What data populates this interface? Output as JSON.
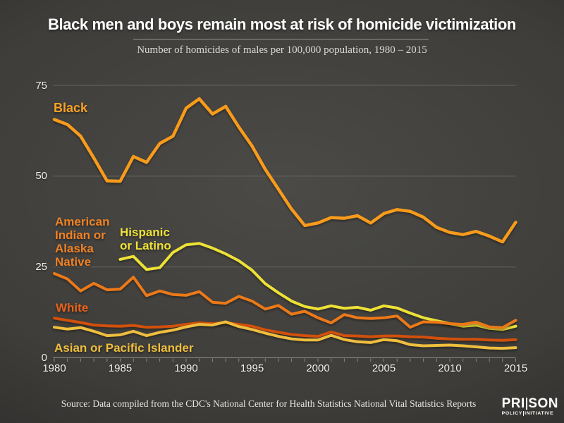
{
  "colors": {
    "background_center": "#4B4A47",
    "background_edge": "#262524",
    "gridline": "#66655F",
    "axis": "#8A8984",
    "title_text": "#FFFFFF",
    "subtitle_text": "#DBD9D6",
    "axis_text": "#F1EFEC",
    "footer_text": "#E9E7E4"
  },
  "footer": {
    "source": "Source: Data compiled from the CDC's National Center for Health Statistics National Vital Statistics Reports",
    "logo": {
      "word_left": "PRI",
      "word_right": "SON",
      "sub_left": "POLICY",
      "sub_right": "INITIATIVE"
    }
  },
  "chart_data": {
    "type": "line",
    "title": "Black men and boys remain most at risk of homicide victimization",
    "subtitle": "Number of homicides of males per 100,000 population, 1980 – 2015",
    "xlabel": "",
    "ylabel": "",
    "ylim": [
      0,
      75
    ],
    "y_ticks": [
      0,
      25,
      50,
      75
    ],
    "y_gridlines": [
      25,
      50,
      75
    ],
    "grid": true,
    "legend_position": "inline-labels",
    "x": [
      1980,
      1981,
      1982,
      1983,
      1984,
      1985,
      1986,
      1987,
      1988,
      1989,
      1990,
      1991,
      1992,
      1993,
      1994,
      1995,
      1996,
      1997,
      1998,
      1999,
      2000,
      2001,
      2002,
      2003,
      2004,
      2005,
      2006,
      2007,
      2008,
      2009,
      2010,
      2011,
      2012,
      2013,
      2014,
      2015
    ],
    "x_tick_labels": [
      1980,
      1985,
      1990,
      1995,
      2000,
      2005,
      2010,
      2015
    ],
    "draw_order": [
      0,
      2,
      1,
      3,
      4
    ],
    "series": [
      {
        "name": "Black",
        "label": "Black",
        "color": "#F89B1B",
        "label_color": "#F9A226",
        "values": [
          65.6,
          64.2,
          61.0,
          55.0,
          48.7,
          48.6,
          55.4,
          53.8,
          59.0,
          61.0,
          68.7,
          71.3,
          67.1,
          69.2,
          63.5,
          58.3,
          51.9,
          46.4,
          40.9,
          36.4,
          37.1,
          38.6,
          38.4,
          39.1,
          37.1,
          39.7,
          40.8,
          40.3,
          38.7,
          35.9,
          34.5,
          33.9,
          34.8,
          33.5,
          31.9,
          37.3
        ]
      },
      {
        "name": "American Indian or Alaska Native",
        "label": "American\nIndian or\nAlaska\nNative",
        "color": "#EC7918",
        "label_color": "#F08124",
        "values": [
          23.2,
          21.7,
          18.4,
          20.5,
          18.7,
          18.9,
          22.2,
          17.1,
          18.4,
          17.4,
          17.2,
          18.2,
          15.3,
          15.0,
          16.9,
          15.6,
          13.4,
          14.4,
          12.0,
          12.8,
          11.0,
          9.6,
          11.9,
          11.0,
          10.8,
          11.0,
          11.5,
          8.4,
          9.9,
          9.8,
          9.4,
          9.2,
          9.8,
          8.5,
          8.3,
          10.3
        ]
      },
      {
        "name": "Hispanic or Latino",
        "label": "Hispanic\nor Latino",
        "color": "#EDE136",
        "label_color": "#EDE136",
        "values": [
          null,
          null,
          null,
          null,
          null,
          27.1,
          27.9,
          24.3,
          24.8,
          29.0,
          31.1,
          31.5,
          30.2,
          28.6,
          26.7,
          24.1,
          20.4,
          17.9,
          15.6,
          14.1,
          13.4,
          14.3,
          13.6,
          13.9,
          13.1,
          14.3,
          13.7,
          12.3,
          11.0,
          10.2,
          9.4,
          8.7,
          9.0,
          8.1,
          7.8,
          8.7
        ]
      },
      {
        "name": "White",
        "label": "White",
        "color": "#D1500C",
        "label_color": "#E8601A",
        "values": [
          10.9,
          10.3,
          9.7,
          9.0,
          8.8,
          8.7,
          8.9,
          8.4,
          8.5,
          8.7,
          9.2,
          9.6,
          9.4,
          9.7,
          9.2,
          8.7,
          7.7,
          7.0,
          6.4,
          6.1,
          5.9,
          7.1,
          6.1,
          6.0,
          5.8,
          6.0,
          6.0,
          5.8,
          5.7,
          5.4,
          5.2,
          5.1,
          5.1,
          4.9,
          4.8,
          5.0
        ]
      },
      {
        "name": "Asian or Pacific Islander",
        "label": "Asian or Pacific Islander",
        "color": "#EFBE3E",
        "label_color": "#EFBE3E",
        "values": [
          8.4,
          7.9,
          8.3,
          7.3,
          6.1,
          6.3,
          7.3,
          6.1,
          7.0,
          7.6,
          8.5,
          9.2,
          9.0,
          9.9,
          8.6,
          7.8,
          6.8,
          5.9,
          5.2,
          4.9,
          4.9,
          6.2,
          5.0,
          4.4,
          4.2,
          5.0,
          4.7,
          3.6,
          3.3,
          3.4,
          3.5,
          3.3,
          3.0,
          2.7,
          2.6,
          2.8
        ]
      }
    ]
  }
}
